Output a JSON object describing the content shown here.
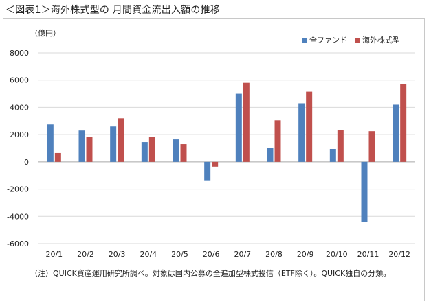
{
  "title": "＜図表1＞海外株式型の 月間資金流出入額の推移",
  "colors": {
    "series1": "#4f81bd",
    "series2": "#c0504d",
    "grid": "#d9d9d9",
    "zero": "#a6a6a6"
  },
  "chart_data": {
    "type": "bar",
    "unit_label": "（億円）",
    "categories": [
      "20/1",
      "20/2",
      "20/3",
      "20/4",
      "20/5",
      "20/6",
      "20/7",
      "20/8",
      "20/9",
      "20/10",
      "20/11",
      "20/12"
    ],
    "series": [
      {
        "name": "全ファンド",
        "values": [
          2750,
          2300,
          2600,
          1450,
          1650,
          -1400,
          5000,
          1000,
          4300,
          950,
          -4400,
          4200
        ]
      },
      {
        "name": "海外株式型",
        "values": [
          650,
          1850,
          3200,
          1850,
          1300,
          -350,
          5800,
          3050,
          5150,
          2350,
          2250,
          5700
        ]
      }
    ],
    "ylim": [
      -6000,
      8000
    ],
    "yticks": [
      8000,
      6000,
      4000,
      2000,
      0,
      -2000,
      -4000,
      -6000
    ],
    "ytick_labels": [
      "8000",
      "6000",
      "4000",
      "2000",
      "0",
      "-2000",
      "-4000",
      "-6000"
    ],
    "grid": true,
    "legend_position": "top-right"
  },
  "note": "（注）QUICK資産運用研究所調べ。対象は国内公募の全追加型株式投信（ETF除く）。QUICK独自の分類。"
}
